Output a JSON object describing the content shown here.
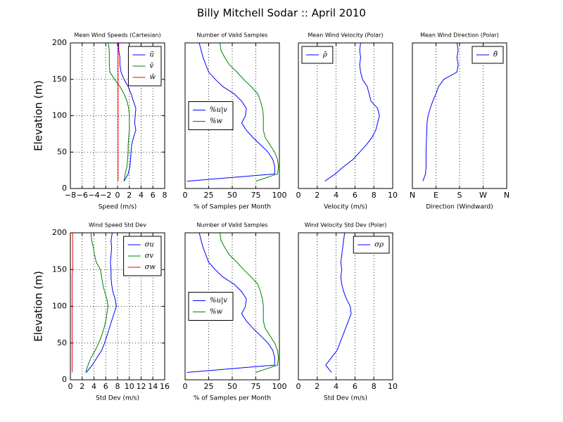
{
  "title": "Billy Mitchell Sodar :: April 2010",
  "chart_data": [
    {
      "type": "line",
      "title": "Mean Wind Speeds (Cartesian)",
      "xlabel": "Speed (m/s)",
      "ylabel": "Elevation (m)",
      "y": [
        10,
        20,
        30,
        40,
        50,
        60,
        70,
        80,
        90,
        100,
        110,
        120,
        130,
        140,
        150,
        160,
        170,
        180,
        190,
        200
      ],
      "xlim": [
        -8,
        8
      ],
      "xticks": [
        {
          "value": -8,
          "label": "−8"
        },
        {
          "value": -6,
          "label": "−6"
        },
        {
          "value": -4,
          "label": "−4"
        },
        {
          "value": -2,
          "label": "−2"
        },
        0,
        2,
        4,
        6,
        8
      ],
      "ylim": [
        0,
        200
      ],
      "yticks": [
        0,
        50,
        100,
        150,
        200
      ],
      "grid": "both",
      "legend": "upper right",
      "series": [
        {
          "name": "ū",
          "color": "#0000ff",
          "values": [
            1.1,
            1.8,
            2.1,
            2.2,
            2.3,
            2.4,
            2.7,
            3.1,
            2.9,
            3.0,
            3.1,
            2.7,
            2.3,
            1.8,
            1.1,
            0.6,
            0.4,
            0.4,
            0.2,
            0.2
          ]
        },
        {
          "name": "v̄",
          "color": "#008000",
          "values": [
            1.1,
            1.3,
            1.6,
            1.7,
            1.8,
            1.8,
            1.9,
            2.0,
            2.0,
            2.0,
            1.9,
            1.6,
            1.1,
            0.4,
            -0.5,
            -1.3,
            -1.4,
            -1.4,
            -1.4,
            -1.6
          ]
        },
        {
          "name": "w̄",
          "color": "#ff0000",
          "values": [
            0.1,
            0.1,
            0.1,
            0.1,
            0.1,
            0.1,
            0.1,
            0.1,
            0.1,
            0.1,
            0.1,
            0.1,
            0.1,
            0.1,
            0.1,
            0.1,
            0.1,
            0.1,
            0.1,
            0.1
          ]
        }
      ]
    },
    {
      "type": "line",
      "title": "Number of Valid Samples",
      "xlabel": "% of Samples per Month",
      "y": [
        10,
        20,
        30,
        40,
        50,
        60,
        70,
        80,
        90,
        100,
        110,
        120,
        130,
        140,
        150,
        160,
        170,
        180,
        190,
        200
      ],
      "xlim": [
        0,
        100
      ],
      "xticks": [
        0,
        25,
        50,
        75,
        100
      ],
      "ylim": [
        0,
        200
      ],
      "grid": "x",
      "legend": "center left",
      "series": [
        {
          "name": "%u|v",
          "color": "#0000ff",
          "values": [
            2,
            95,
            95,
            93,
            88,
            80,
            72,
            65,
            60,
            64,
            65,
            60,
            52,
            40,
            32,
            25,
            22,
            19,
            17,
            15
          ]
        },
        {
          "name": "%w",
          "color": "#008000",
          "values": [
            75,
            98,
            99,
            98,
            95,
            90,
            85,
            83,
            83,
            83,
            82,
            80,
            77,
            70,
            62,
            55,
            47,
            42,
            38,
            37
          ]
        }
      ]
    },
    {
      "type": "line",
      "title": "Mean Wind Velocity (Polar)",
      "xlabel": "Velocity (m/s)",
      "y": [
        10,
        20,
        30,
        40,
        50,
        60,
        70,
        80,
        90,
        100,
        110,
        120,
        130,
        140,
        150,
        160,
        170,
        180,
        190,
        200
      ],
      "xlim": [
        0,
        10
      ],
      "xticks": [
        0,
        2,
        4,
        6,
        8,
        10
      ],
      "ylim": [
        0,
        200
      ],
      "grid": "x",
      "legend": "upper left",
      "series": [
        {
          "name": "ρ̄",
          "color": "#0000ff",
          "values": [
            2.8,
            3.9,
            4.8,
            5.8,
            6.5,
            7.2,
            7.8,
            8.2,
            8.4,
            8.6,
            8.4,
            7.7,
            7.5,
            7.3,
            6.8,
            6.6,
            6.5,
            6.6,
            6.5,
            6.6
          ]
        }
      ]
    },
    {
      "type": "line",
      "title": "Mean Wind Direction (Polar)",
      "xlabel": "Direction (Windward)",
      "y": [
        10,
        20,
        30,
        40,
        50,
        60,
        70,
        80,
        90,
        100,
        110,
        120,
        130,
        140,
        150,
        160,
        170,
        180,
        190,
        200
      ],
      "xlim": [
        0,
        360
      ],
      "xticks": [
        {
          "value": 0,
          "label": "N"
        },
        {
          "value": 90,
          "label": "E"
        },
        {
          "value": 180,
          "label": "S"
        },
        {
          "value": 270,
          "label": "W"
        },
        {
          "value": 360,
          "label": "N"
        }
      ],
      "ylim": [
        0,
        200
      ],
      "grid": "x",
      "legend": "upper right",
      "series": [
        {
          "name": "θ̄",
          "color": "#0000ff",
          "values": [
            40,
            50,
            52,
            52,
            52,
            53,
            54,
            55,
            56,
            60,
            68,
            78,
            90,
            100,
            120,
            170,
            175,
            170,
            175,
            170
          ]
        }
      ]
    },
    {
      "type": "line",
      "title": "Wind Speed Std Dev",
      "xlabel": "Std Dev (m/s)",
      "ylabel": "Elevation (m)",
      "y": [
        10,
        20,
        30,
        40,
        50,
        60,
        70,
        80,
        90,
        100,
        110,
        120,
        130,
        140,
        150,
        160,
        170,
        180,
        190,
        200
      ],
      "xlim": [
        0,
        16
      ],
      "xticks": [
        0,
        2,
        4,
        6,
        8,
        10,
        12,
        14,
        16
      ],
      "ylim": [
        0,
        200
      ],
      "yticks": [
        0,
        50,
        100,
        150,
        200
      ],
      "grid": "both",
      "legend": "upper right",
      "series": [
        {
          "name": "σu",
          "color": "#0000ff",
          "values": [
            2.7,
            3.7,
            4.5,
            5.3,
            5.8,
            6.2,
            6.6,
            7.0,
            7.4,
            7.8,
            7.6,
            7.2,
            7.0,
            6.9,
            6.9,
            6.8,
            6.9,
            7.0,
            6.9,
            7.1
          ]
        },
        {
          "name": "σv",
          "color": "#008000",
          "values": [
            2.6,
            3.0,
            3.5,
            4.2,
            4.8,
            5.3,
            5.7,
            6.0,
            6.2,
            6.4,
            6.2,
            5.8,
            5.5,
            5.3,
            5.1,
            4.4,
            4.1,
            3.9,
            3.6,
            3.5
          ]
        },
        {
          "name": "σw",
          "color": "#ff0000",
          "values": [
            0.3,
            0.3,
            0.3,
            0.3,
            0.3,
            0.3,
            0.3,
            0.3,
            0.3,
            0.3,
            0.3,
            0.3,
            0.3,
            0.3,
            0.4,
            0.4,
            0.4,
            0.4,
            0.4,
            0.4
          ]
        }
      ]
    },
    {
      "type": "line",
      "title": "Number of Valid Samples",
      "xlabel": "% of Samples per Month",
      "y": [
        10,
        20,
        30,
        40,
        50,
        60,
        70,
        80,
        90,
        100,
        110,
        120,
        130,
        140,
        150,
        160,
        170,
        180,
        190,
        200
      ],
      "xlim": [
        0,
        100
      ],
      "xticks": [
        0,
        25,
        50,
        75,
        100
      ],
      "ylim": [
        0,
        200
      ],
      "grid": "x",
      "legend": "center left",
      "series": [
        {
          "name": "%u|v",
          "color": "#0000ff",
          "values": [
            2,
            95,
            95,
            93,
            88,
            80,
            72,
            65,
            60,
            64,
            65,
            60,
            52,
            40,
            32,
            25,
            22,
            19,
            17,
            15
          ]
        },
        {
          "name": "%w",
          "color": "#008000",
          "values": [
            75,
            98,
            99,
            98,
            95,
            90,
            85,
            83,
            83,
            83,
            82,
            80,
            77,
            70,
            62,
            55,
            47,
            42,
            38,
            37
          ]
        }
      ]
    },
    {
      "type": "line",
      "title": "Wind Velocity Std Dev (Polar)",
      "xlabel": "Std Dev (m/s)",
      "y": [
        10,
        20,
        30,
        40,
        50,
        60,
        70,
        80,
        90,
        100,
        110,
        120,
        130,
        140,
        150,
        160,
        170,
        180,
        190,
        200
      ],
      "xlim": [
        0,
        10
      ],
      "xticks": [
        0,
        2,
        4,
        6,
        8,
        10
      ],
      "ylim": [
        0,
        200
      ],
      "grid": "x",
      "legend": "upper right",
      "series": [
        {
          "name": "σρ",
          "color": "#0000ff",
          "values": [
            3.5,
            2.9,
            3.5,
            4.1,
            4.4,
            4.7,
            5.0,
            5.3,
            5.6,
            5.5,
            5.1,
            4.8,
            4.6,
            4.5,
            4.6,
            4.5,
            4.6,
            4.7,
            4.8,
            4.9
          ]
        }
      ]
    }
  ]
}
